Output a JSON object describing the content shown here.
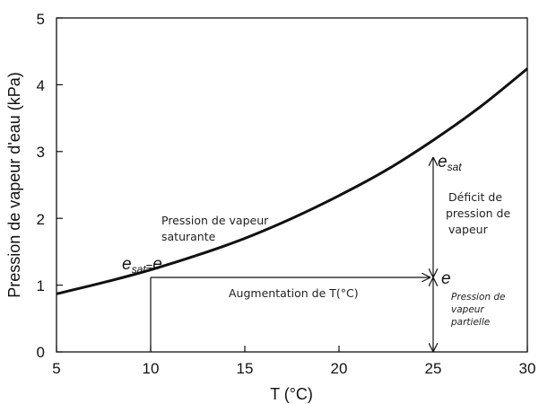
{
  "chart_data": {
    "type": "line",
    "xlabel": "T (°C)",
    "ylabel": "Pression de vapeur d'eau (kPa)",
    "xlim": [
      5,
      30
    ],
    "ylim": [
      0,
      5
    ],
    "xticks": [
      "5",
      "10",
      "15",
      "20",
      "25",
      "30"
    ],
    "yticks": [
      "0",
      "1",
      "2",
      "3",
      "4",
      "5"
    ],
    "grid": false,
    "series": [
      {
        "x": [
          5,
          7.5,
          10,
          12.5,
          15,
          17.5,
          20,
          22.5,
          25,
          27.5,
          30
        ],
        "y": [
          0.87,
          1.04,
          1.23,
          1.45,
          1.7,
          2.0,
          2.34,
          2.72,
          3.17,
          3.67,
          4.24
        ]
      }
    ],
    "annotations": {
      "saturation_label": [
        "Pression de vapeur",
        "saturante"
      ],
      "esat_equals_e": {
        "symbol_e": "e",
        "symbol_sat": "sat",
        "equals": "=",
        "x": 10,
        "y": 1.12
      },
      "esat_at_25": {
        "symbol_e": "e",
        "symbol_sat": "sat",
        "x": 25,
        "y": 2.98
      },
      "e_at_25": {
        "symbol": "e",
        "x": 25,
        "y": 1.12
      },
      "deficit_label": [
        "Déficit de",
        "pression de",
        "vapeur"
      ],
      "partial_label": [
        "Pression de",
        "vapeur",
        "partielle"
      ],
      "increase_label": "Augmentation de T(°C)"
    }
  }
}
